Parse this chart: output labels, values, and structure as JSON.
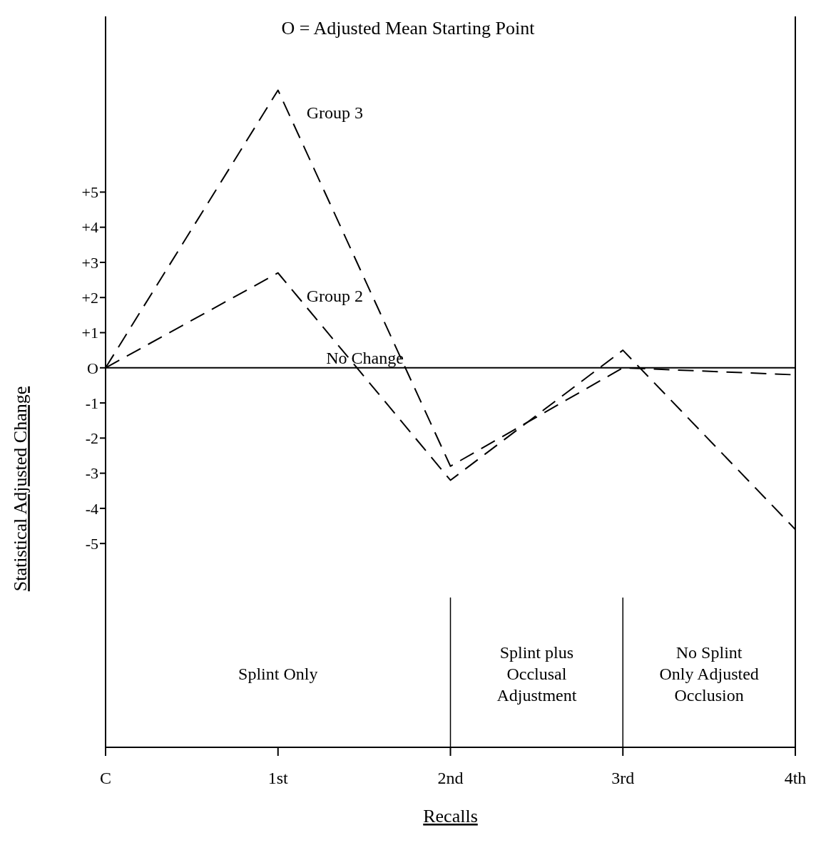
{
  "chart_data": {
    "type": "line",
    "title": "O = Adjusted Mean Starting Point",
    "xlabel": "Recalls",
    "ylabel": "Statistical Adjusted Change",
    "categories": [
      "C",
      "1st",
      "2nd",
      "3rd",
      "4th"
    ],
    "series": [
      {
        "name": "Group 3",
        "color": "#000000",
        "line_style": "dashed",
        "values": [
          0,
          7.9,
          -2.8,
          0,
          -0.2
        ]
      },
      {
        "name": "Group 2",
        "color": "#000000",
        "line_style": "dashed",
        "values": [
          0,
          2.7,
          -3.2,
          0.5,
          -4.6
        ]
      }
    ],
    "ylim": [
      -10.8,
      10
    ],
    "yticks": [
      {
        "value": 5,
        "label": "+5"
      },
      {
        "value": 4,
        "label": "+4"
      },
      {
        "value": 3,
        "label": "+3"
      },
      {
        "value": 2,
        "label": "+2"
      },
      {
        "value": 1,
        "label": "+1"
      },
      {
        "value": 0,
        "label": "O"
      },
      -1,
      -2,
      -3,
      -4,
      -5
    ],
    "ref_lines": [
      {
        "axis": "y",
        "value": 0,
        "label": "No Change",
        "color": "#000000",
        "line_style": "solid"
      },
      {
        "axis": "x",
        "value": "2nd",
        "color": "#000000",
        "line_style": "solid"
      },
      {
        "axis": "x",
        "value": "3rd",
        "color": "#000000",
        "line_style": "solid"
      }
    ],
    "annotations": [
      "Splint Only",
      "Splint plus Occlusal Adjustment",
      "No Splint Only Adjusted Occlusion"
    ],
    "grid": false,
    "legend": false,
    "marker": "none"
  }
}
